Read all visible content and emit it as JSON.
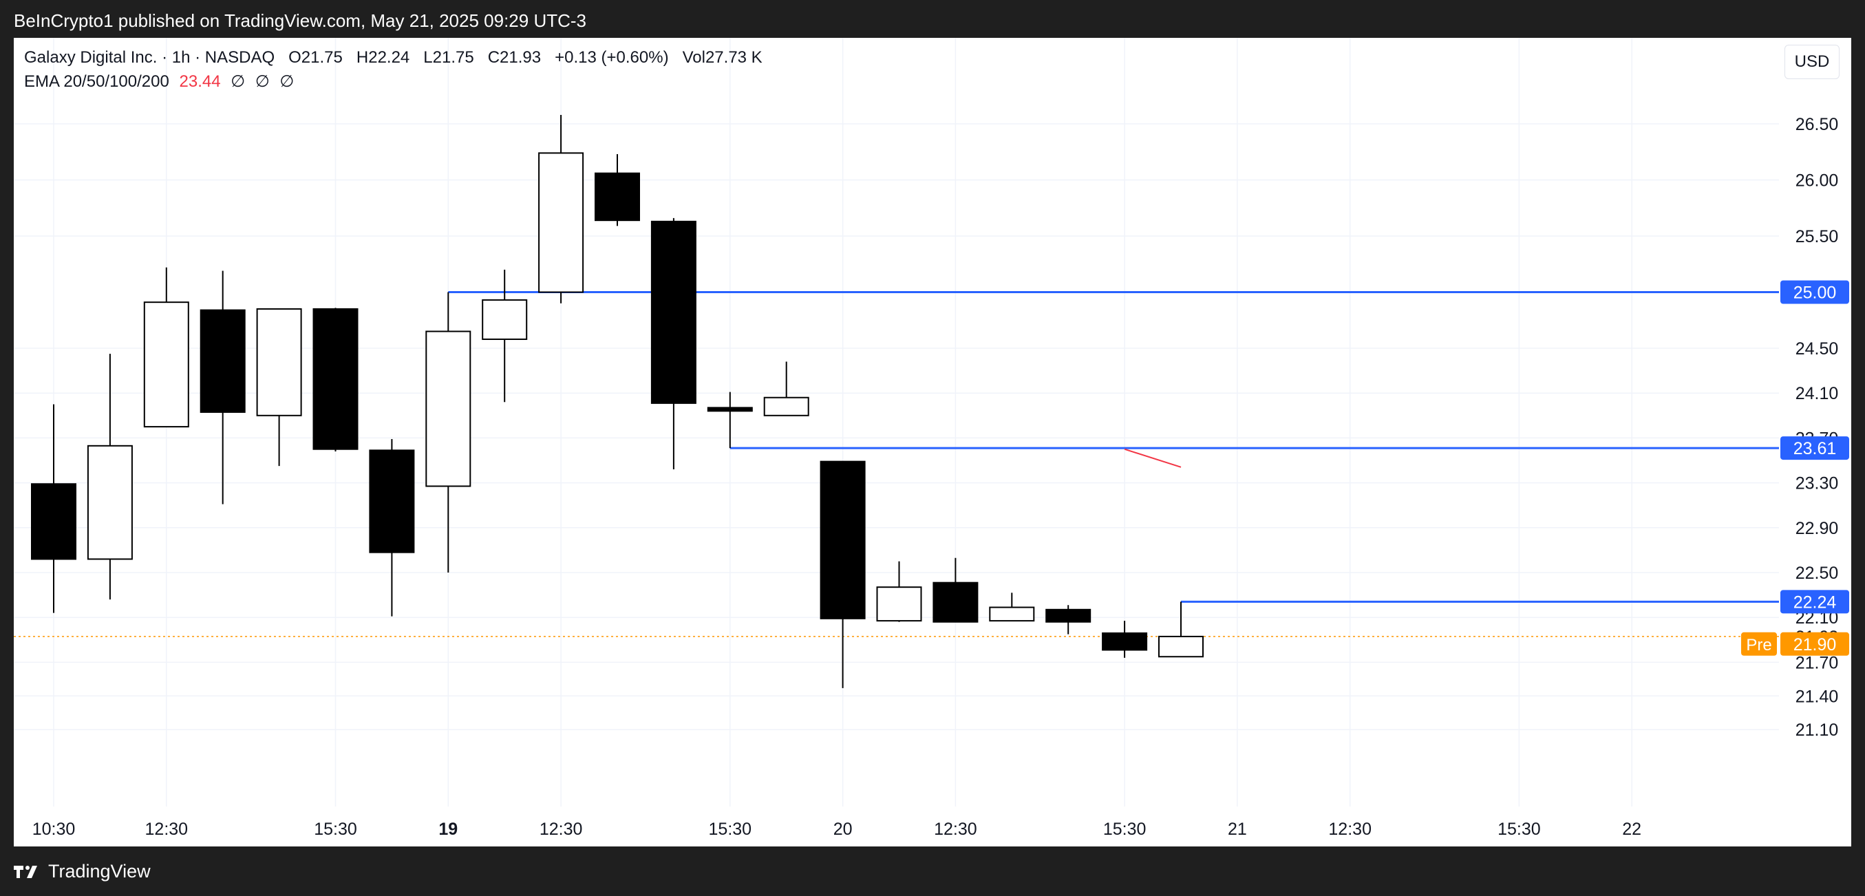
{
  "header": {
    "publisher_text": "BeInCrypto1 published on TradingView.com, May 21, 2025 09:29 UTC-3"
  },
  "legend": {
    "symbol": "Galaxy Digital Inc. · 1h · NASDAQ",
    "open": "O21.75",
    "high": "H22.24",
    "low": "L21.75",
    "close": "C21.93",
    "change": "+0.13 (+0.60%)",
    "volume": "Vol27.73 K",
    "ema_label": "EMA 20/50/100/200",
    "ema_value": "23.44",
    "ema_nulls": [
      "∅",
      "∅",
      "∅"
    ]
  },
  "currency_button": "USD",
  "footer": {
    "brand": "TradingView"
  },
  "colors": {
    "background": "#1f1f1f",
    "panel": "#ffffff",
    "level_line": "#2962ff",
    "pre_market": "#ff9800",
    "ema": "#f23645",
    "candle_down": "#000000",
    "candle_up": "#ffffff"
  },
  "chart_data": {
    "type": "candlestick",
    "title": "Galaxy Digital Inc. · 1h · NASDAQ",
    "y_axis_ticks": [
      "26.50",
      "26.00",
      "25.50",
      "24.50",
      "24.10",
      "23.70",
      "23.30",
      "22.90",
      "22.50",
      "22.10",
      "21.70",
      "21.40",
      "21.10"
    ],
    "x_axis_ticks": [
      {
        "t": 0,
        "label": "10:30",
        "bold": false
      },
      {
        "t": 2,
        "label": "12:30",
        "bold": false
      },
      {
        "t": 5,
        "label": "15:30",
        "bold": false
      },
      {
        "t": 7,
        "label": "19",
        "bold": true
      },
      {
        "t": 9,
        "label": "12:30",
        "bold": false
      },
      {
        "t": 12,
        "label": "15:30",
        "bold": false
      },
      {
        "t": 14,
        "label": "20",
        "bold": false
      },
      {
        "t": 16,
        "label": "12:30",
        "bold": false
      },
      {
        "t": 19,
        "label": "15:30",
        "bold": false
      },
      {
        "t": 21,
        "label": "21",
        "bold": false
      },
      {
        "t": 23,
        "label": "12:30",
        "bold": false
      },
      {
        "t": 26,
        "label": "15:30",
        "bold": false
      },
      {
        "t": 28,
        "label": "22",
        "bold": false
      }
    ],
    "candles": [
      {
        "t": 0,
        "o": 23.29,
        "h": 24.0,
        "l": 22.14,
        "c": 22.62
      },
      {
        "t": 1,
        "o": 22.62,
        "h": 24.45,
        "l": 22.26,
        "c": 23.63
      },
      {
        "t": 2,
        "o": 23.8,
        "h": 25.22,
        "l": null,
        "c": 24.91
      },
      {
        "t": 3,
        "o": 24.84,
        "h": 25.19,
        "l": 23.11,
        "c": 23.93
      },
      {
        "t": 4,
        "o": 23.9,
        "h": 24.85,
        "l": 23.45,
        "c": 24.85
      },
      {
        "t": 5,
        "o": 24.85,
        "h": 24.86,
        "l": 23.58,
        "c": 23.6
      },
      {
        "t": 6,
        "o": 23.59,
        "h": 23.69,
        "l": 22.11,
        "c": 22.68
      },
      {
        "t": 7,
        "o": 23.27,
        "h": 25.0,
        "l": 22.5,
        "c": 24.65
      },
      {
        "t": 8,
        "o": 24.58,
        "h": 25.2,
        "l": 24.02,
        "c": 24.93
      },
      {
        "t": 9,
        "o": 25.0,
        "h": 26.58,
        "l": 24.9,
        "c": 26.24
      },
      {
        "t": 10,
        "o": 26.06,
        "h": 26.23,
        "l": 25.59,
        "c": 25.64
      },
      {
        "t": 11,
        "o": 25.63,
        "h": 25.66,
        "l": 23.42,
        "c": 24.01
      },
      {
        "t": 12,
        "o": 23.97,
        "h": 24.11,
        "l": 23.61,
        "c": 23.94
      },
      {
        "t": 13,
        "o": 23.9,
        "h": 24.38,
        "l": null,
        "c": 24.06
      },
      {
        "t": 14,
        "o": 23.49,
        "h": null,
        "l": 21.47,
        "c": 22.09
      },
      {
        "t": 15,
        "o": 22.07,
        "h": 22.6,
        "l": 22.06,
        "c": 22.37
      },
      {
        "t": 16,
        "o": 22.41,
        "h": 22.63,
        "l": null,
        "c": 22.06
      },
      {
        "t": 17,
        "o": 22.07,
        "h": 22.32,
        "l": null,
        "c": 22.19
      },
      {
        "t": 18,
        "o": 22.17,
        "h": 22.21,
        "l": 21.95,
        "c": 22.06
      },
      {
        "t": 19,
        "o": 21.96,
        "h": 22.07,
        "l": 21.74,
        "c": 21.81
      },
      {
        "t": 20,
        "o": 21.75,
        "h": 22.24,
        "l": 21.75,
        "c": 21.93
      }
    ],
    "levels": [
      {
        "value": 25.0,
        "label": "25.00",
        "from_t": 7
      },
      {
        "value": 23.61,
        "label": "23.61",
        "from_t": 12
      },
      {
        "value": 22.24,
        "label": "22.24",
        "from_t": 20
      }
    ],
    "ema_segment": [
      {
        "t": 19,
        "v": 23.6
      },
      {
        "t": 20,
        "v": 23.44
      }
    ],
    "last_price": {
      "value": 21.93,
      "label": "21.93"
    },
    "pre_market": {
      "value": 21.9,
      "label": "21.90",
      "tag": "Pre"
    }
  }
}
